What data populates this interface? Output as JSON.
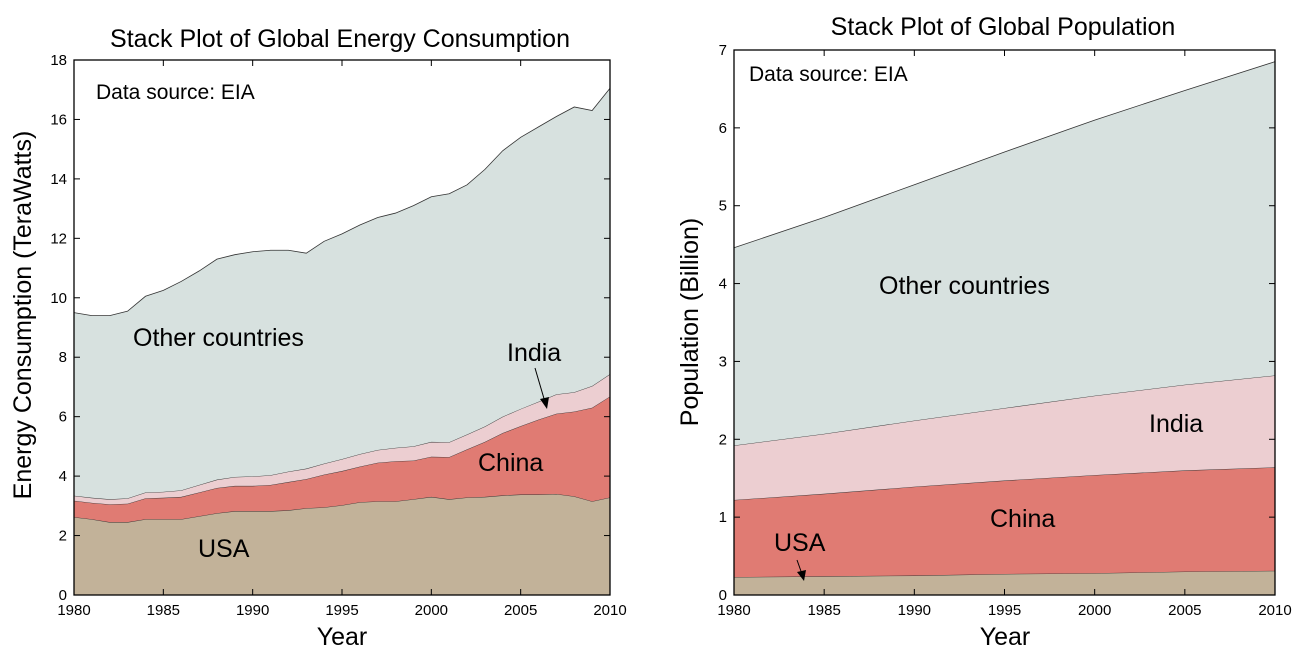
{
  "chart_data": [
    {
      "type": "area",
      "stacked": true,
      "title": "Stack Plot of Global Energy Consumption",
      "xlabel": "Year",
      "ylabel": "Energy Consumption (TeraWatts)",
      "annotation": "Data source: EIA",
      "xlim": [
        1980,
        2010
      ],
      "ylim": [
        0,
        18
      ],
      "xticks": [
        1980,
        1985,
        1990,
        1995,
        2000,
        2005,
        2010
      ],
      "yticks": [
        0,
        2,
        4,
        6,
        8,
        10,
        12,
        14,
        16,
        18
      ],
      "x": [
        1980,
        1981,
        1982,
        1983,
        1984,
        1985,
        1986,
        1987,
        1988,
        1989,
        1990,
        1991,
        1992,
        1993,
        1994,
        1995,
        1996,
        1997,
        1998,
        1999,
        2000,
        2001,
        2002,
        2003,
        2004,
        2005,
        2006,
        2007,
        2008,
        2009,
        2010
      ],
      "series": [
        {
          "name": "USA",
          "color": "#c2b299",
          "values": [
            2.62,
            2.55,
            2.45,
            2.45,
            2.55,
            2.55,
            2.55,
            2.65,
            2.75,
            2.82,
            2.82,
            2.82,
            2.85,
            2.92,
            2.95,
            3.02,
            3.12,
            3.15,
            3.15,
            3.22,
            3.3,
            3.22,
            3.28,
            3.3,
            3.35,
            3.38,
            3.38,
            3.4,
            3.32,
            3.15,
            3.28
          ]
        },
        {
          "name": "China",
          "color": "#e07b73",
          "values": [
            0.55,
            0.55,
            0.6,
            0.62,
            0.7,
            0.72,
            0.75,
            0.8,
            0.85,
            0.85,
            0.85,
            0.88,
            0.95,
            0.98,
            1.1,
            1.15,
            1.2,
            1.3,
            1.35,
            1.3,
            1.35,
            1.42,
            1.62,
            1.85,
            2.1,
            2.3,
            2.52,
            2.7,
            2.85,
            3.15,
            3.4
          ]
        },
        {
          "name": "India",
          "color": "#ecced1",
          "values": [
            0.17,
            0.17,
            0.17,
            0.18,
            0.2,
            0.2,
            0.22,
            0.25,
            0.28,
            0.3,
            0.32,
            0.33,
            0.35,
            0.35,
            0.37,
            0.4,
            0.42,
            0.43,
            0.45,
            0.48,
            0.5,
            0.5,
            0.5,
            0.52,
            0.55,
            0.58,
            0.6,
            0.65,
            0.65,
            0.73,
            0.75
          ]
        },
        {
          "name": "Other countries",
          "color": "#d7e1df",
          "values": [
            6.16,
            6.13,
            6.18,
            6.3,
            6.6,
            6.78,
            7.03,
            7.2,
            7.42,
            7.48,
            7.56,
            7.57,
            7.45,
            7.25,
            7.48,
            7.58,
            7.71,
            7.82,
            7.9,
            8.1,
            8.25,
            8.36,
            8.4,
            8.65,
            8.95,
            9.14,
            9.25,
            9.35,
            9.6,
            9.27,
            9.62
          ]
        }
      ],
      "labels": {
        "usa": "USA",
        "china": "China",
        "india": "India",
        "other": "Other countries"
      }
    },
    {
      "type": "area",
      "stacked": true,
      "title": "Stack Plot of Global Population",
      "xlabel": "Year",
      "ylabel": "Population (Billion)",
      "annotation": "Data source: EIA",
      "xlim": [
        1980,
        2010
      ],
      "ylim": [
        0,
        7
      ],
      "xticks": [
        1980,
        1985,
        1990,
        1995,
        2000,
        2005,
        2010
      ],
      "yticks": [
        0,
        1,
        2,
        3,
        4,
        5,
        6,
        7
      ],
      "x": [
        1980,
        1985,
        1990,
        1995,
        2000,
        2005,
        2010
      ],
      "series": [
        {
          "name": "USA",
          "color": "#c2b299",
          "values": [
            0.23,
            0.24,
            0.25,
            0.27,
            0.28,
            0.3,
            0.31
          ]
        },
        {
          "name": "China",
          "color": "#e07b73",
          "values": [
            0.99,
            1.06,
            1.14,
            1.2,
            1.26,
            1.3,
            1.33
          ]
        },
        {
          "name": "India",
          "color": "#ecced1",
          "values": [
            0.7,
            0.77,
            0.85,
            0.93,
            1.02,
            1.1,
            1.18
          ]
        },
        {
          "name": "Other countries",
          "color": "#d7e1df",
          "values": [
            2.54,
            2.78,
            3.03,
            3.29,
            3.54,
            3.78,
            4.03
          ]
        }
      ],
      "labels": {
        "usa": "USA",
        "china": "China",
        "india": "India",
        "other": "Other countries"
      }
    }
  ]
}
